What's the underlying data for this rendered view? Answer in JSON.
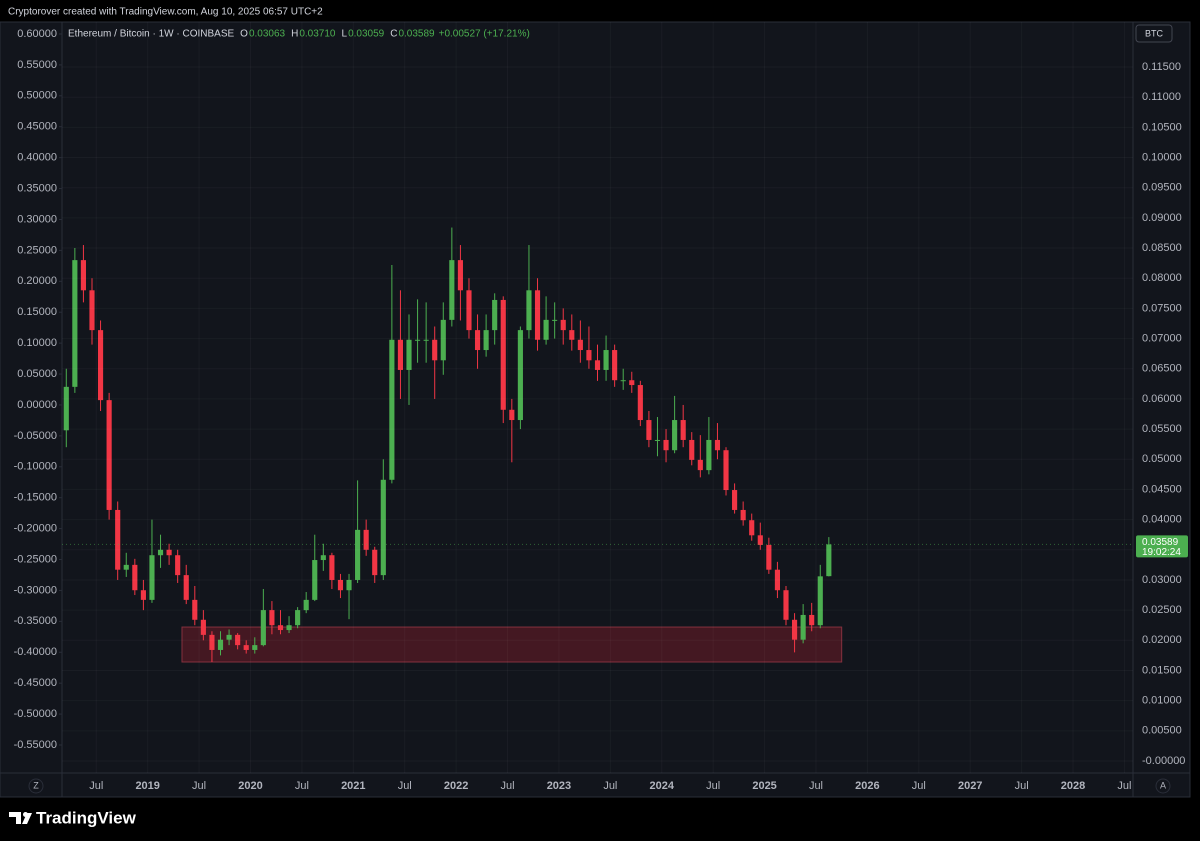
{
  "header": {
    "credit": "Cryptorover created with TradingView.com, Aug 10, 2025 06:57 UTC+2"
  },
  "footer": {
    "brand": "TradingView"
  },
  "buttons": {
    "left": "Z",
    "right": "A"
  },
  "chart_data": {
    "type": "candlestick",
    "title": "Ethereum / Bitcoin · 1W · COINBASE",
    "ohlc_legend": [
      {
        "key": "O",
        "value": "0.03063"
      },
      {
        "key": "H",
        "value": "0.03710"
      },
      {
        "key": "L",
        "value": "0.03059"
      },
      {
        "key": "C",
        "value": "0.03589"
      }
    ],
    "change": "+0.00527 (+17.21%)",
    "y2_unit": "BTC",
    "up_color": "#4caf50",
    "down_color": "#f23645",
    "grid": true,
    "x": [
      "2018-03",
      "2018-04",
      "2018-05",
      "2018-06",
      "2018-07",
      "2018-08",
      "2018-09",
      "2018-10",
      "2018-11",
      "2018-12",
      "2019-01",
      "2019-02",
      "2019-03",
      "2019-04",
      "2019-05",
      "2019-06",
      "2019-07",
      "2019-08",
      "2019-09",
      "2019-10",
      "2019-11",
      "2019-12",
      "2020-01",
      "2020-02",
      "2020-03",
      "2020-04",
      "2020-05",
      "2020-06",
      "2020-07",
      "2020-08",
      "2020-09",
      "2020-10",
      "2020-11",
      "2020-12",
      "2021-01",
      "2021-02",
      "2021-03",
      "2021-04",
      "2021-05",
      "2021-06",
      "2021-07",
      "2021-08",
      "2021-09",
      "2021-10",
      "2021-11",
      "2021-12",
      "2022-01",
      "2022-02",
      "2022-03",
      "2022-04",
      "2022-05",
      "2022-06",
      "2022-07",
      "2022-08",
      "2022-09",
      "2022-10",
      "2022-11",
      "2022-12",
      "2023-01",
      "2023-02",
      "2023-03",
      "2023-04",
      "2023-05",
      "2023-06",
      "2023-07",
      "2023-08",
      "2023-09",
      "2023-10",
      "2023-11",
      "2023-12",
      "2024-01",
      "2024-02",
      "2024-03",
      "2024-04",
      "2024-05",
      "2024-06",
      "2024-07",
      "2024-08",
      "2024-09",
      "2024-10",
      "2024-11",
      "2024-12",
      "2025-01",
      "2025-02",
      "2025-03",
      "2025-04",
      "2025-05",
      "2025-06",
      "2025-07",
      "2025-08"
    ],
    "open": [
      0.0548,
      0.062,
      0.083,
      0.078,
      0.0714,
      0.0598,
      0.0416,
      0.0317,
      0.0325,
      0.0283,
      0.0267,
      0.0341,
      0.035,
      0.0341,
      0.0308,
      0.0267,
      0.0234,
      0.0209,
      0.0184,
      0.0201,
      0.0209,
      0.0192,
      0.0184,
      0.0192,
      0.025,
      0.0225,
      0.0217,
      0.0225,
      0.025,
      0.0267,
      0.0333,
      0.0341,
      0.03,
      0.0283,
      0.03,
      0.0383,
      0.035,
      0.0308,
      0.0466,
      0.0698,
      0.0648,
      0.0698,
      0.0698,
      0.0698,
      0.0664,
      0.0731,
      0.083,
      0.078,
      0.0714,
      0.0681,
      0.0714,
      0.0764,
      0.0582,
      0.0565,
      0.0714,
      0.078,
      0.0698,
      0.0731,
      0.0731,
      0.0714,
      0.0698,
      0.0681,
      0.0664,
      0.0648,
      0.0681,
      0.0631,
      0.0631,
      0.0623,
      0.0565,
      0.0532,
      0.0532,
      0.0515,
      0.0565,
      0.0532,
      0.0499,
      0.0482,
      0.0532,
      0.0515,
      0.0449,
      0.0416,
      0.0399,
      0.0374,
      0.0358,
      0.0317,
      0.0283,
      0.0234,
      0.0201,
      0.0242,
      0.0225,
      0.03063
    ],
    "high": [
      0.065,
      0.085,
      0.0855,
      0.08,
      0.073,
      0.061,
      0.043,
      0.0345,
      0.0335,
      0.03,
      0.04,
      0.0375,
      0.036,
      0.035,
      0.0325,
      0.029,
      0.025,
      0.0215,
      0.0215,
      0.0218,
      0.0212,
      0.02,
      0.0205,
      0.0285,
      0.0265,
      0.025,
      0.024,
      0.0255,
      0.028,
      0.0375,
      0.036,
      0.0345,
      0.031,
      0.031,
      0.0465,
      0.04,
      0.0355,
      0.05,
      0.0822,
      0.078,
      0.074,
      0.0765,
      0.076,
      0.072,
      0.076,
      0.0884,
      0.0855,
      0.08,
      0.074,
      0.074,
      0.0775,
      0.077,
      0.06,
      0.072,
      0.0855,
      0.08,
      0.077,
      0.076,
      0.075,
      0.074,
      0.073,
      0.072,
      0.069,
      0.0705,
      0.069,
      0.065,
      0.0645,
      0.063,
      0.058,
      0.057,
      0.055,
      0.0605,
      0.059,
      0.0545,
      0.054,
      0.057,
      0.056,
      0.052,
      0.046,
      0.043,
      0.041,
      0.0395,
      0.037,
      0.033,
      0.029,
      0.0245,
      0.026,
      0.0262,
      0.0325,
      0.0371
    ],
    "low": [
      0.052,
      0.061,
      0.076,
      0.069,
      0.058,
      0.04,
      0.03,
      0.0305,
      0.0275,
      0.025,
      0.0262,
      0.032,
      0.0325,
      0.0295,
      0.026,
      0.0225,
      0.02,
      0.0164,
      0.0175,
      0.0192,
      0.0185,
      0.0178,
      0.0178,
      0.019,
      0.021,
      0.021,
      0.0212,
      0.022,
      0.0245,
      0.0265,
      0.0315,
      0.0285,
      0.027,
      0.0235,
      0.0295,
      0.034,
      0.0295,
      0.03,
      0.046,
      0.06,
      0.059,
      0.066,
      0.066,
      0.06,
      0.064,
      0.072,
      0.073,
      0.07,
      0.065,
      0.067,
      0.069,
      0.056,
      0.0495,
      0.055,
      0.07,
      0.068,
      0.069,
      0.07,
      0.069,
      0.068,
      0.066,
      0.065,
      0.063,
      0.063,
      0.062,
      0.0615,
      0.061,
      0.0555,
      0.052,
      0.0505,
      0.0495,
      0.051,
      0.052,
      0.049,
      0.047,
      0.0475,
      0.05,
      0.044,
      0.041,
      0.039,
      0.0365,
      0.035,
      0.031,
      0.027,
      0.0225,
      0.018,
      0.0195,
      0.0215,
      0.022,
      0.03059
    ],
    "close": [
      0.062,
      0.083,
      0.078,
      0.0714,
      0.0598,
      0.0416,
      0.0317,
      0.0325,
      0.0283,
      0.0267,
      0.0341,
      0.035,
      0.0341,
      0.0308,
      0.0267,
      0.0234,
      0.0209,
      0.0184,
      0.0201,
      0.0209,
      0.0192,
      0.0184,
      0.0192,
      0.025,
      0.0225,
      0.0217,
      0.0225,
      0.025,
      0.0267,
      0.0333,
      0.0341,
      0.03,
      0.0283,
      0.03,
      0.0383,
      0.035,
      0.0308,
      0.0466,
      0.0698,
      0.0648,
      0.0698,
      0.0698,
      0.0698,
      0.0664,
      0.0731,
      0.083,
      0.078,
      0.0714,
      0.0681,
      0.0714,
      0.0764,
      0.0582,
      0.0565,
      0.0714,
      0.078,
      0.0698,
      0.0731,
      0.0731,
      0.0714,
      0.0698,
      0.0681,
      0.0664,
      0.0648,
      0.0681,
      0.0631,
      0.0631,
      0.0623,
      0.0565,
      0.0532,
      0.0532,
      0.0515,
      0.0565,
      0.0532,
      0.0499,
      0.0482,
      0.0532,
      0.0515,
      0.0449,
      0.0416,
      0.0399,
      0.0374,
      0.0358,
      0.0317,
      0.0283,
      0.0234,
      0.0201,
      0.0242,
      0.0225,
      0.0306,
      0.03589
    ],
    "last_price": {
      "value": 0.03589,
      "label": "0.03589",
      "countdown": "19:02:24"
    },
    "zone": {
      "x": [
        "2019-05",
        "2025-10"
      ],
      "y": [
        0.0164,
        0.0222
      ],
      "color": "rgba(110,28,40,0.55)",
      "border": "rgba(170,60,75,0.7)"
    },
    "xlim": [
      "2018-03",
      "2028-08"
    ],
    "xticks": [
      {
        "value": "2018-07",
        "label": "Jul"
      },
      {
        "value": "2019-01",
        "label": "2019"
      },
      {
        "value": "2019-07",
        "label": "Jul"
      },
      {
        "value": "2020-01",
        "label": "2020"
      },
      {
        "value": "2020-07",
        "label": "Jul"
      },
      {
        "value": "2021-01",
        "label": "2021"
      },
      {
        "value": "2021-07",
        "label": "Jul"
      },
      {
        "value": "2022-01",
        "label": "2022"
      },
      {
        "value": "2022-07",
        "label": "Jul"
      },
      {
        "value": "2023-01",
        "label": "2023"
      },
      {
        "value": "2023-07",
        "label": "Jul"
      },
      {
        "value": "2024-01",
        "label": "2024"
      },
      {
        "value": "2024-07",
        "label": "Jul"
      },
      {
        "value": "2025-01",
        "label": "2025"
      },
      {
        "value": "2025-07",
        "label": "Jul"
      },
      {
        "value": "2026-01",
        "label": "2026"
      },
      {
        "value": "2026-07",
        "label": "Jul"
      },
      {
        "value": "2027-01",
        "label": "2027"
      },
      {
        "value": "2027-07",
        "label": "Jul"
      },
      {
        "value": "2028-01",
        "label": "2028"
      },
      {
        "value": "2028-07",
        "label": "Jul"
      }
    ],
    "ylim": [
      -0.5953,
      0.6194
    ],
    "yticks": [
      {
        "value": 0.6,
        "label": "0.60000"
      },
      {
        "value": 0.55,
        "label": "0.55000"
      },
      {
        "value": 0.5,
        "label": "0.50000"
      },
      {
        "value": 0.45,
        "label": "0.45000"
      },
      {
        "value": 0.4,
        "label": "0.40000"
      },
      {
        "value": 0.35,
        "label": "0.35000"
      },
      {
        "value": 0.3,
        "label": "0.30000"
      },
      {
        "value": 0.25,
        "label": "0.25000"
      },
      {
        "value": 0.2,
        "label": "0.20000"
      },
      {
        "value": 0.15,
        "label": "0.15000"
      },
      {
        "value": 0.1,
        "label": "0.10000"
      },
      {
        "value": 0.05,
        "label": "0.05000"
      },
      {
        "value": 0,
        "label": "0.00000"
      },
      {
        "value": -0.05,
        "label": "-0.05000"
      },
      {
        "value": -0.1,
        "label": "-0.10000"
      },
      {
        "value": -0.15,
        "label": "-0.15000"
      },
      {
        "value": -0.2,
        "label": "-0.20000"
      },
      {
        "value": -0.25,
        "label": "-0.25000"
      },
      {
        "value": -0.3,
        "label": "-0.30000"
      },
      {
        "value": -0.35,
        "label": "-0.35000"
      },
      {
        "value": -0.4,
        "label": "-0.40000"
      },
      {
        "value": -0.45,
        "label": "-0.45000"
      },
      {
        "value": -0.5,
        "label": "-0.50000"
      },
      {
        "value": -0.55,
        "label": "-0.55000"
      }
    ],
    "y2lim": [
      -0.00199,
      0.12246
    ],
    "y2ticks": [
      {
        "value": 0.115,
        "label": "0.11500"
      },
      {
        "value": 0.11,
        "label": "0.11000"
      },
      {
        "value": 0.105,
        "label": "0.10500"
      },
      {
        "value": 0.1,
        "label": "0.10000"
      },
      {
        "value": 0.095,
        "label": "0.09500"
      },
      {
        "value": 0.09,
        "label": "0.09000"
      },
      {
        "value": 0.085,
        "label": "0.08500"
      },
      {
        "value": 0.08,
        "label": "0.08000"
      },
      {
        "value": 0.075,
        "label": "0.07500"
      },
      {
        "value": 0.07,
        "label": "0.07000"
      },
      {
        "value": 0.065,
        "label": "0.06500"
      },
      {
        "value": 0.06,
        "label": "0.06000"
      },
      {
        "value": 0.055,
        "label": "0.05500"
      },
      {
        "value": 0.05,
        "label": "0.05000"
      },
      {
        "value": 0.045,
        "label": "0.04500"
      },
      {
        "value": 0.04,
        "label": "0.04000"
      },
      {
        "value": 0.035,
        "label": "0.03500"
      },
      {
        "value": 0.03,
        "label": "0.03000"
      },
      {
        "value": 0.025,
        "label": "0.02500"
      },
      {
        "value": 0.02,
        "label": "0.02000"
      },
      {
        "value": 0.015,
        "label": "0.01500"
      },
      {
        "value": 0.01,
        "label": "0.01000"
      },
      {
        "value": 0.005,
        "label": "0.00500"
      },
      {
        "value": 0,
        "label": "-0.00000"
      }
    ]
  }
}
